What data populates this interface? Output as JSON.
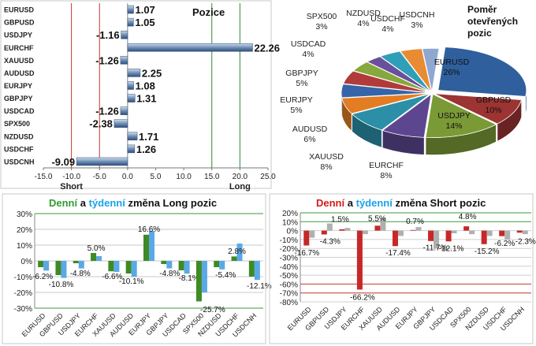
{
  "colors": {
    "green": "#2f9e2f",
    "cyan": "#1aa3e8",
    "red": "#d81b1b",
    "dark": "#222222",
    "long_daily": "#3e8a24",
    "long_weekly": "#5aa9e6",
    "short_daily": "#c62828",
    "short_weekly": "#b0b0b0"
  },
  "positions_panel": {
    "title": "Pozice"
  },
  "pie_panel": {
    "title_lines": [
      "Poměr",
      "otevřených",
      "pozic"
    ]
  },
  "long_panel": {
    "title_parts": [
      "Denní",
      "a",
      "týdenní",
      "změna Long pozic"
    ]
  },
  "short_panel": {
    "title_parts": [
      "Denní",
      "a",
      "týdenní",
      "změna Short pozic"
    ]
  },
  "chart_data": [
    {
      "type": "bar",
      "orientation": "horizontal",
      "title": "Pozice",
      "categories": [
        "EURUSD",
        "GBPUSD",
        "USDJPY",
        "EURCHF",
        "XAUUSD",
        "AUDUSD",
        "EURJPY",
        "GBPJPY",
        "USDCAD",
        "SPX500",
        "NZDUSD",
        "USDCHF",
        "USDCNH"
      ],
      "values": [
        1.07,
        1.05,
        -1.16,
        22.26,
        -1.26,
        2.25,
        1.08,
        1.31,
        -1.26,
        -2.38,
        1.71,
        1.26,
        -9.09
      ],
      "value_labels": [
        "1.07",
        "1.05",
        "-1.16",
        "22.26",
        "-1.26",
        "2.25",
        "1.08",
        "1.31",
        "-1.26",
        "-2.38",
        "1.71",
        "1.26",
        "-9.09"
      ],
      "xlim": [
        -15,
        25
      ],
      "xticks": [
        "-15.0",
        "-10.0",
        "-5.0",
        "0.0",
        "5.0",
        "10.0",
        "15.0",
        "20.0",
        "25.0"
      ],
      "xtick_values": [
        -15,
        -10,
        -5,
        0,
        5,
        10,
        15,
        20,
        25
      ],
      "side_labels": [
        "Short",
        "Long"
      ],
      "reference_lines": {
        "red": [
          -10,
          -5
        ],
        "green": [
          15,
          20
        ]
      }
    },
    {
      "type": "pie",
      "title": "Poměr otevřených pozic",
      "categories": [
        "EURUSD",
        "GBPUSD",
        "USDJPY",
        "EURCHF",
        "XAUUSD",
        "AUDUSD",
        "EURJPY",
        "GBPJPY",
        "USDCAD",
        "SPX500",
        "NZDUSD",
        "USDCHF",
        "USDCNH"
      ],
      "values": [
        26,
        10,
        14,
        8,
        8,
        6,
        5,
        5,
        4,
        3,
        4,
        4,
        3
      ],
      "value_labels": [
        "26%",
        "10%",
        "14%",
        "8%",
        "8%",
        "6%",
        "5%",
        "5%",
        "4%",
        "3%",
        "4%",
        "4%",
        "3%"
      ],
      "colors": [
        "#2f5f9c",
        "#9b3432",
        "#7a9a36",
        "#5d4690",
        "#2b8fa8",
        "#e37d23",
        "#3565a8",
        "#b13b3a",
        "#86a83c",
        "#6a4f9c",
        "#2f9fb8",
        "#e98b33",
        "#8fa8d0"
      ]
    },
    {
      "type": "bar",
      "title": "Denní a týdenní změna Long pozic",
      "categories": [
        "EURUSD",
        "GBPUSD",
        "USDJPY",
        "EURCHF",
        "XAUUSD",
        "AUDUSD",
        "EURJPY",
        "GBPJPY",
        "USDCAD",
        "SPX500",
        "NZDUSD",
        "USDCHF",
        "USDCNH"
      ],
      "series": [
        {
          "values": [
            -4,
            -9,
            -1.5,
            5.0,
            -6.6,
            -8,
            16.6,
            -2,
            -6,
            -25.7,
            -4,
            2.8,
            -10
          ]
        },
        {
          "values": [
            -6.2,
            -10.8,
            -4.8,
            3,
            -7,
            -10.1,
            19,
            -4.8,
            -8.1,
            -20,
            -5.4,
            11,
            -12.1
          ]
        }
      ],
      "data_labels": [
        {
          "text": "-6.2%"
        },
        {
          "text": "-10.8%"
        },
        {
          "text": "-4.8%"
        },
        {
          "text": "5.0%"
        },
        {
          "text": "-6.6%"
        },
        {
          "text": "-10.1%"
        },
        {
          "text": "16.6%"
        },
        {
          "text": "-4.8%"
        },
        {
          "text": "-8.1%"
        },
        {
          "text": "-25.7%"
        },
        {
          "text": "-5.4%"
        },
        {
          "text": "2.8%"
        },
        {
          "text": "-12.1%"
        }
      ],
      "ylim": [
        -30,
        30
      ],
      "yticks": [
        "30%",
        "20%",
        "10%",
        "0%",
        "-10%",
        "-20%",
        "-30%"
      ],
      "ytick_values": [
        30,
        20,
        10,
        0,
        -10,
        -20,
        -30
      ]
    },
    {
      "type": "bar",
      "title": "Denní a týdenní změna Short pozic",
      "categories": [
        "EURUSD",
        "GBPUSD",
        "USDJPY",
        "EURCHF",
        "XAUUSD",
        "AUDUSD",
        "EURJPY",
        "GBPJPY",
        "USDCAD",
        "SPX500",
        "NZDUSD",
        "USDCHF",
        "USDCNH"
      ],
      "series": [
        {
          "values": [
            -16.7,
            -4.3,
            1.5,
            -66.2,
            5.5,
            -17.4,
            0.7,
            -11.7,
            -12.1,
            4.8,
            -15.2,
            -6.2,
            -2.3
          ]
        },
        {
          "values": [
            -8,
            8,
            3,
            -4,
            14,
            -6,
            4,
            -20,
            -3,
            -4,
            -6,
            -10,
            -4
          ]
        }
      ],
      "data_labels": [
        {
          "text": "-16.7%"
        },
        {
          "text": "-4.3%"
        },
        {
          "text": "1.5%"
        },
        {
          "text": "-66.2%"
        },
        {
          "text": "5.5%"
        },
        {
          "text": "-17.4%"
        },
        {
          "text": "0.7%"
        },
        {
          "text": "-11.7%"
        },
        {
          "text": "-12.1%"
        },
        {
          "text": "4.8%"
        },
        {
          "text": "-15.2%"
        },
        {
          "text": "-6.2%"
        },
        {
          "text": "-2.3%"
        }
      ],
      "ylim": [
        -80,
        20
      ],
      "yticks": [
        "20%",
        "10%",
        "0%",
        "-10%",
        "-20%",
        "-30%",
        "-40%",
        "-50%",
        "-60%",
        "-70%",
        "-80%"
      ],
      "ytick_values": [
        20,
        10,
        0,
        -10,
        -20,
        -30,
        -40,
        -50,
        -60,
        -70,
        -80
      ]
    }
  ]
}
